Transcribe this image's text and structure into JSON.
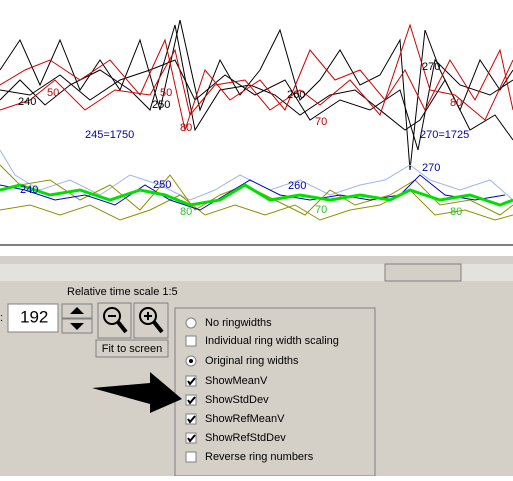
{
  "plot": {
    "labels": [
      "240",
      "50",
      "250",
      "50",
      "80",
      "260",
      "70",
      "270",
      "80",
      "245=1750",
      "270=1725",
      "240",
      "250",
      "260",
      "270",
      "80",
      "70",
      "80"
    ]
  },
  "controls": {
    "time_scale_label": "Relative time scale 1:5",
    "year_field": "192",
    "fit_button": "Fit to screen"
  },
  "menu": {
    "items": [
      {
        "label": "No ringwidths",
        "control": "radio",
        "checked": false
      },
      {
        "label": "Individual ring width scaling",
        "control": "checkbox",
        "checked": false
      },
      {
        "label": "Original ring widths",
        "control": "radio",
        "checked": true
      },
      {
        "label": "ShowMeanV",
        "control": "checkbox",
        "checked": true
      },
      {
        "label": "ShowStdDev",
        "control": "checkbox",
        "checked": true
      },
      {
        "label": "ShowRefMeanV",
        "control": "checkbox",
        "checked": true
      },
      {
        "label": "ShowRefStdDev",
        "control": "checkbox",
        "checked": true
      },
      {
        "label": "Reverse ring numbers",
        "control": "checkbox",
        "checked": false
      }
    ]
  }
}
